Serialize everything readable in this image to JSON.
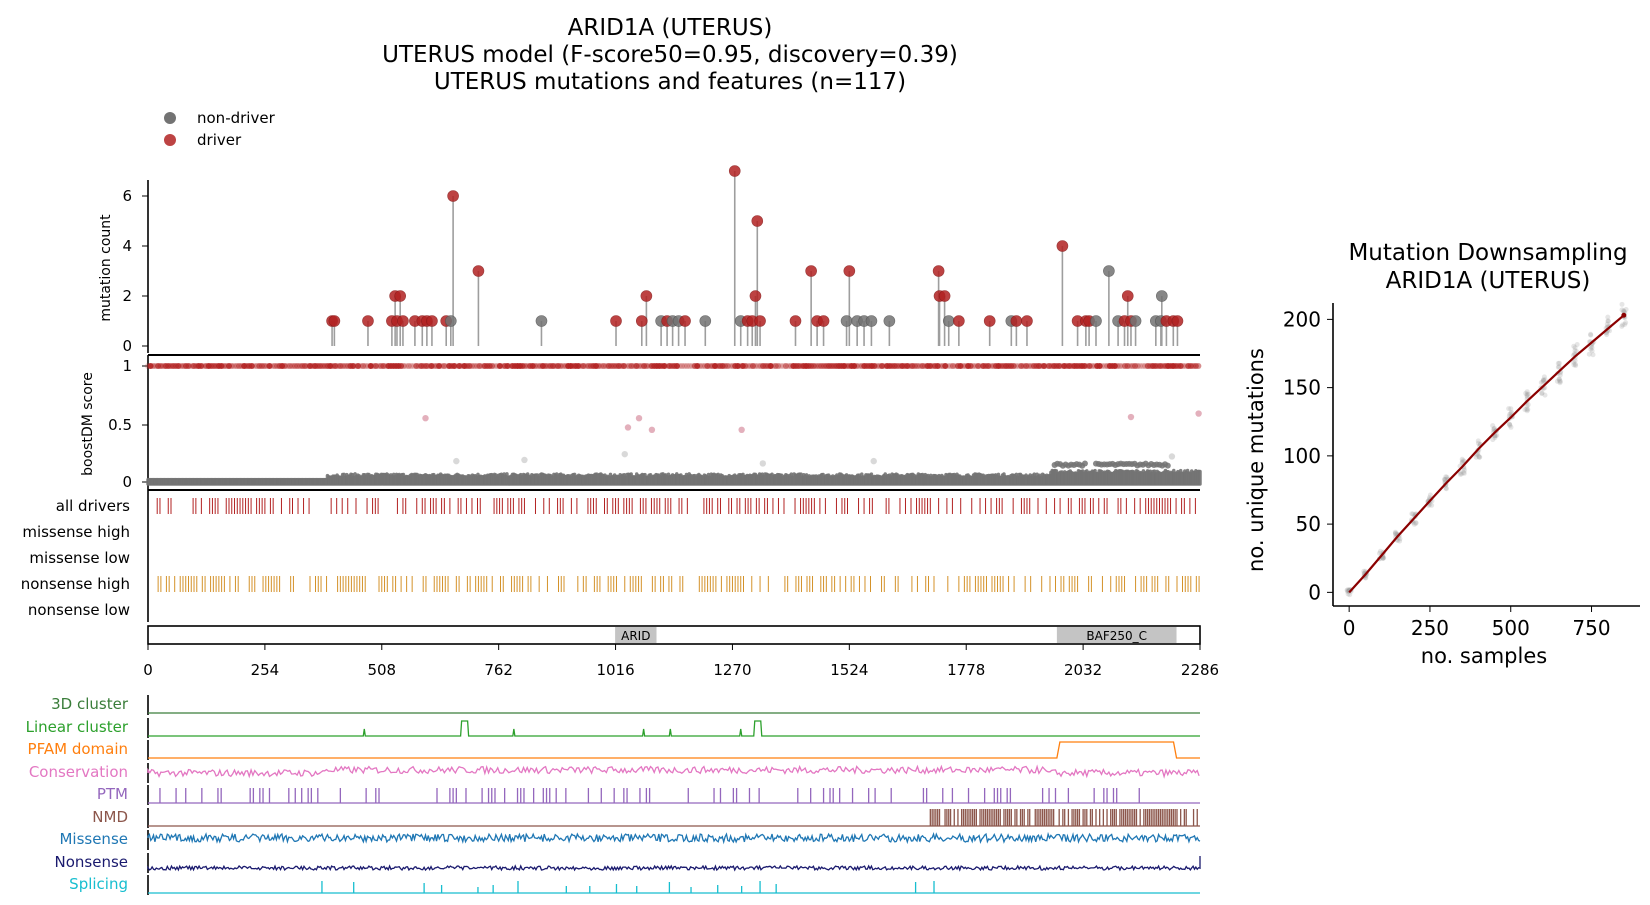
{
  "figure": {
    "title_lines": [
      "ARID1A (UTERUS)",
      "UTERUS model (F-score50=0.95, discovery=0.39)",
      "UTERUS mutations and features (n=117)"
    ]
  },
  "legend": {
    "items": [
      {
        "label": "non-driver",
        "color": "#737373"
      },
      {
        "label": "driver",
        "color": "#b22222"
      }
    ]
  },
  "colors": {
    "driver": "#b22222",
    "non_driver": "#737373",
    "stem": "#9e9e9e",
    "nonsense": "#d4922a",
    "domain_box": "#c4c4c4",
    "downsample_line": "#8b0000"
  },
  "chart_data": [
    {
      "type": "scatter",
      "name": "lollipop",
      "ylabel": "mutation count",
      "xlim": [
        0,
        2286
      ],
      "yticks": [
        0,
        2,
        4,
        6
      ],
      "points": [
        {
          "x": 400,
          "y": 1,
          "d": true
        },
        {
          "x": 405,
          "y": 1,
          "d": true
        },
        {
          "x": 478,
          "y": 1,
          "d": true
        },
        {
          "x": 530,
          "y": 1,
          "d": true
        },
        {
          "x": 537,
          "y": 2,
          "d": true
        },
        {
          "x": 541,
          "y": 1,
          "d": true
        },
        {
          "x": 548,
          "y": 2,
          "d": true
        },
        {
          "x": 554,
          "y": 1,
          "d": true
        },
        {
          "x": 580,
          "y": 1,
          "d": true
        },
        {
          "x": 596,
          "y": 1,
          "d": true
        },
        {
          "x": 606,
          "y": 1,
          "d": true
        },
        {
          "x": 617,
          "y": 1,
          "d": true
        },
        {
          "x": 648,
          "y": 1,
          "d": true
        },
        {
          "x": 658,
          "y": 1,
          "d": false
        },
        {
          "x": 663,
          "y": 6,
          "d": true
        },
        {
          "x": 718,
          "y": 3,
          "d": true
        },
        {
          "x": 855,
          "y": 1,
          "d": false
        },
        {
          "x": 1017,
          "y": 1,
          "d": true
        },
        {
          "x": 1073,
          "y": 1,
          "d": true
        },
        {
          "x": 1083,
          "y": 2,
          "d": true
        },
        {
          "x": 1115,
          "y": 1,
          "d": false
        },
        {
          "x": 1128,
          "y": 1,
          "d": true
        },
        {
          "x": 1140,
          "y": 1,
          "d": false
        },
        {
          "x": 1153,
          "y": 1,
          "d": false
        },
        {
          "x": 1167,
          "y": 1,
          "d": true
        },
        {
          "x": 1211,
          "y": 1,
          "d": false
        },
        {
          "x": 1275,
          "y": 7,
          "d": true
        },
        {
          "x": 1288,
          "y": 1,
          "d": false
        },
        {
          "x": 1303,
          "y": 1,
          "d": true
        },
        {
          "x": 1313,
          "y": 1,
          "d": true
        },
        {
          "x": 1320,
          "y": 2,
          "d": true
        },
        {
          "x": 1324,
          "y": 5,
          "d": true
        },
        {
          "x": 1330,
          "y": 1,
          "d": true
        },
        {
          "x": 1407,
          "y": 1,
          "d": true
        },
        {
          "x": 1441,
          "y": 3,
          "d": true
        },
        {
          "x": 1454,
          "y": 1,
          "d": true
        },
        {
          "x": 1468,
          "y": 1,
          "d": true
        },
        {
          "x": 1518,
          "y": 1,
          "d": false
        },
        {
          "x": 1524,
          "y": 3,
          "d": true
        },
        {
          "x": 1541,
          "y": 1,
          "d": false
        },
        {
          "x": 1556,
          "y": 1,
          "d": false
        },
        {
          "x": 1572,
          "y": 1,
          "d": false
        },
        {
          "x": 1611,
          "y": 1,
          "d": false
        },
        {
          "x": 1718,
          "y": 3,
          "d": true
        },
        {
          "x": 1720,
          "y": 2,
          "d": true
        },
        {
          "x": 1731,
          "y": 2,
          "d": true
        },
        {
          "x": 1740,
          "y": 1,
          "d": false
        },
        {
          "x": 1762,
          "y": 1,
          "d": true
        },
        {
          "x": 1829,
          "y": 1,
          "d": true
        },
        {
          "x": 1876,
          "y": 1,
          "d": false
        },
        {
          "x": 1887,
          "y": 1,
          "d": true
        },
        {
          "x": 1910,
          "y": 1,
          "d": true
        },
        {
          "x": 1987,
          "y": 4,
          "d": true
        },
        {
          "x": 2020,
          "y": 1,
          "d": true
        },
        {
          "x": 2038,
          "y": 1,
          "d": true
        },
        {
          "x": 2045,
          "y": 1,
          "d": true
        },
        {
          "x": 2060,
          "y": 1,
          "d": false
        },
        {
          "x": 2088,
          "y": 3,
          "d": false
        },
        {
          "x": 2108,
          "y": 1,
          "d": false
        },
        {
          "x": 2122,
          "y": 1,
          "d": true
        },
        {
          "x": 2129,
          "y": 2,
          "d": true
        },
        {
          "x": 2136,
          "y": 1,
          "d": true
        },
        {
          "x": 2146,
          "y": 1,
          "d": false
        },
        {
          "x": 2190,
          "y": 1,
          "d": false
        },
        {
          "x": 2201,
          "y": 1,
          "d": false
        },
        {
          "x": 2203,
          "y": 2,
          "d": false
        },
        {
          "x": 2213,
          "y": 1,
          "d": true
        },
        {
          "x": 2228,
          "y": 1,
          "d": true
        },
        {
          "x": 2237,
          "y": 1,
          "d": true
        }
      ]
    },
    {
      "type": "scatter",
      "name": "boostdm",
      "ylabel": "boostDM score",
      "xlim": [
        0,
        2286
      ],
      "yticks": [
        "0",
        "0.5",
        "1"
      ],
      "outliers": [
        {
          "x": 603,
          "y": 0.55
        },
        {
          "x": 1036,
          "y": 0.24
        },
        {
          "x": 1043,
          "y": 0.47
        },
        {
          "x": 1067,
          "y": 0.55
        },
        {
          "x": 1095,
          "y": 0.45
        },
        {
          "x": 1290,
          "y": 0.45
        },
        {
          "x": 2136,
          "y": 0.56
        },
        {
          "x": 2283,
          "y": 0.59
        },
        {
          "x": 670,
          "y": 0.18
        },
        {
          "x": 818,
          "y": 0.19
        },
        {
          "x": 1336,
          "y": 0.16
        },
        {
          "x": 1577,
          "y": 0.18
        },
        {
          "x": 2225,
          "y": 0.22
        }
      ]
    },
    {
      "type": "table",
      "name": "tracks",
      "rows": [
        "all drivers",
        "missense high",
        "missense low",
        "nonsense high",
        "nonsense low"
      ]
    },
    {
      "type": "bar",
      "name": "domains",
      "xlim": [
        0,
        2286
      ],
      "xticks": [
        "0",
        "254",
        "508",
        "762",
        "1016",
        "1270",
        "1524",
        "1778",
        "2032",
        "2286"
      ],
      "domains": [
        {
          "label": "ARID",
          "start": 1015,
          "end": 1105
        },
        {
          "label": "BAF250_C",
          "start": 1975,
          "end": 2235
        }
      ]
    },
    {
      "type": "line",
      "name": "features",
      "xlim": [
        0,
        2286
      ],
      "tracks": [
        {
          "label": "3D cluster",
          "color": "#3a7d3a"
        },
        {
          "label": "Linear cluster",
          "color": "#2ca02c"
        },
        {
          "label": "PFAM domain",
          "color": "#ff7f0e"
        },
        {
          "label": "Conservation",
          "color": "#e377c2"
        },
        {
          "label": "PTM",
          "color": "#9467bd"
        },
        {
          "label": "NMD",
          "color": "#8c564b"
        },
        {
          "label": "Missense",
          "color": "#1f77b4"
        },
        {
          "label": "Nonsense",
          "color": "#1a1a6e"
        },
        {
          "label": "Splicing",
          "color": "#17becf"
        }
      ],
      "linear_cluster_peaks": [
        470,
        688,
        795,
        1077,
        1135,
        1288,
        1325
      ],
      "pfam_span": [
        1975,
        2235
      ],
      "splicing_peaks": [
        378,
        447,
        600,
        638,
        717,
        750,
        804,
        909,
        960,
        1018,
        1062,
        1133,
        1180,
        1238,
        1290,
        1330,
        1365,
        1668,
        1708
      ]
    },
    {
      "type": "line",
      "name": "downsampling",
      "title": "Mutation Downsampling\nARID1A (UTERUS)",
      "xlabel": "no. samples",
      "ylabel": "no. unique mutations",
      "xlim": [
        -50,
        900
      ],
      "ylim": [
        -10,
        212
      ],
      "xticks": [
        "0",
        "250",
        "500",
        "750"
      ],
      "yticks": [
        "0",
        "50",
        "100",
        "150",
        "200"
      ],
      "x": [
        0,
        50,
        100,
        150,
        200,
        250,
        300,
        350,
        400,
        450,
        500,
        550,
        600,
        650,
        700,
        750,
        800,
        850
      ],
      "y": [
        0,
        13,
        27,
        41,
        54,
        67,
        80,
        92,
        105,
        117,
        128,
        140,
        151,
        162,
        173,
        183,
        193,
        203
      ]
    }
  ]
}
